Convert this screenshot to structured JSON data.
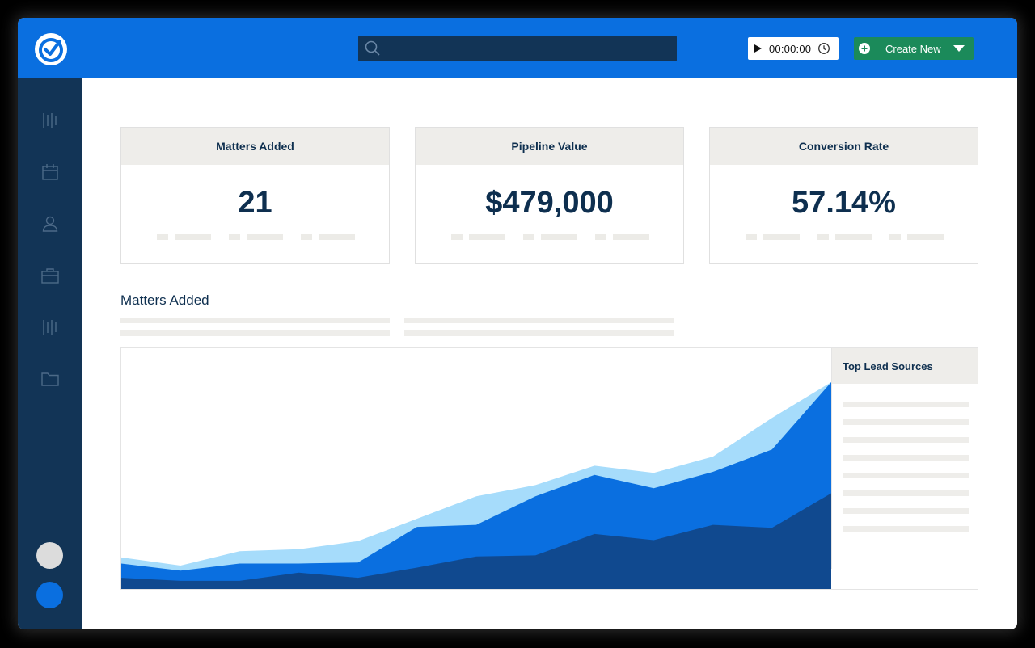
{
  "app": {
    "brand_icon": "check-circle-icon"
  },
  "header": {
    "search": {
      "placeholder": ""
    },
    "timer": {
      "value": "00:00:00"
    },
    "create_button": {
      "label": "Create New"
    },
    "colors": {
      "topbar": "#0a6fe0",
      "create": "#1b8a5a",
      "search_bg": "#123456"
    }
  },
  "sidebar": {
    "items": [
      {
        "icon": "bars-icon"
      },
      {
        "icon": "calendar-icon"
      },
      {
        "icon": "user-icon"
      },
      {
        "icon": "briefcase-icon"
      },
      {
        "icon": "bars-icon"
      },
      {
        "icon": "folder-icon"
      }
    ]
  },
  "cards": [
    {
      "title": "Matters Added",
      "value": "21"
    },
    {
      "title": "Pipeline Value",
      "value": "$479,000"
    },
    {
      "title": "Conversion Rate",
      "value": "57.14%"
    }
  ],
  "section": {
    "title": "Matters Added"
  },
  "legend": {
    "title": "Top Lead Sources"
  },
  "chart_data": {
    "type": "area",
    "x": [
      0,
      1,
      2,
      3,
      4,
      5,
      6,
      7,
      8,
      9,
      10,
      11,
      12
    ],
    "series": [
      {
        "values": [
          11,
          8,
          8,
          16,
          11,
          21,
          32,
          33,
          54,
          48,
          63,
          60,
          94
        ],
        "color": "#10498f"
      },
      {
        "values": [
          25,
          18,
          25,
          25,
          26,
          61,
          63,
          91,
          112,
          99,
          115,
          137,
          203
        ],
        "color": "#0a6fe0"
      },
      {
        "values": [
          31,
          23,
          37,
          39,
          47,
          69,
          91,
          102,
          121,
          114,
          130,
          168,
          203
        ],
        "color": "#a6dcfb"
      }
    ],
    "stacked": true,
    "ylim": [
      0,
      230
    ],
    "grid": false
  }
}
